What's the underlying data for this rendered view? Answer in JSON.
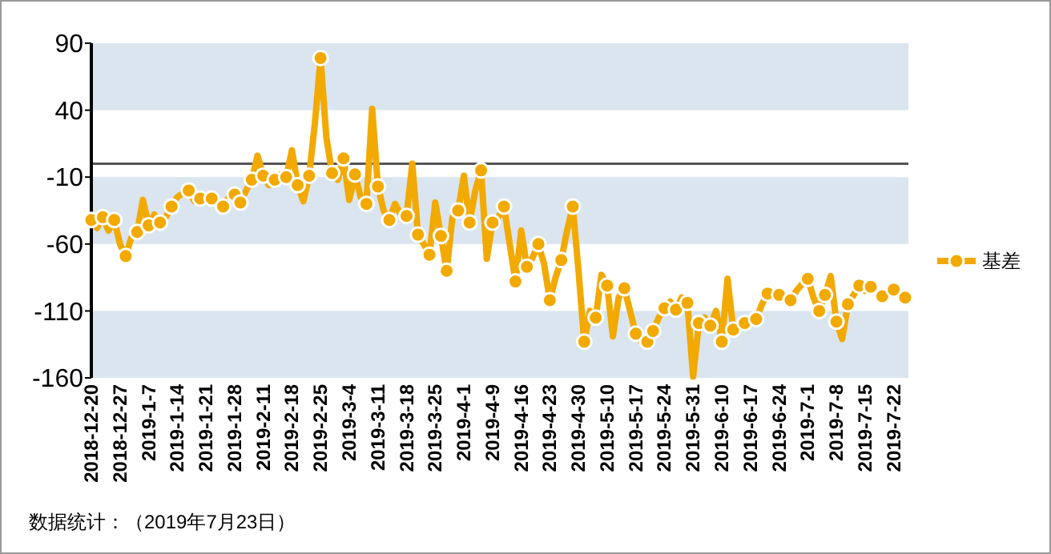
{
  "chart_data": {
    "type": "line",
    "annotations": [
      "数据统计：（2019年7月23日）"
    ],
    "categories": [
      "2018-12-20",
      null,
      null,
      null,
      null,
      "2018-12-27",
      null,
      null,
      null,
      null,
      "2019-1-7",
      null,
      null,
      null,
      null,
      "2019-1-14",
      null,
      null,
      null,
      null,
      "2019-1-21",
      null,
      null,
      null,
      null,
      "2019-1-28",
      null,
      null,
      null,
      null,
      "2019-2-11",
      null,
      null,
      null,
      null,
      "2019-2-18",
      null,
      null,
      null,
      null,
      "2019-2-25",
      null,
      null,
      null,
      null,
      "2019-3-4",
      null,
      null,
      null,
      null,
      "2019-3-11",
      null,
      null,
      null,
      null,
      "2019-3-18",
      null,
      null,
      null,
      null,
      "2019-3-25",
      null,
      null,
      null,
      null,
      "2019-4-1",
      null,
      null,
      null,
      null,
      "2019-4-9",
      null,
      null,
      null,
      null,
      "2019-4-16",
      null,
      null,
      null,
      null,
      "2019-4-23",
      null,
      null,
      null,
      null,
      "2019-4-30",
      null,
      null,
      null,
      null,
      "2019-5-10",
      null,
      null,
      null,
      null,
      "2019-5-17",
      null,
      null,
      null,
      null,
      "2019-5-24",
      null,
      null,
      null,
      null,
      "2019-5-31",
      null,
      null,
      null,
      null,
      "2019-6-10",
      null,
      null,
      null,
      null,
      "2019-6-17",
      null,
      null,
      null,
      null,
      "2019-6-24",
      null,
      null,
      null,
      null,
      "2019-7-1",
      null,
      null,
      null,
      null,
      "2019-7-8",
      null,
      null,
      null,
      null,
      "2019-7-15",
      null,
      null,
      null,
      null,
      "2019-7-22",
      null,
      null
    ],
    "series": [
      {
        "type": "line",
        "name": "基差",
        "color": "#f2a900",
        "marker": "none",
        "values": [
          -42,
          -48,
          -40,
          -50,
          -42,
          -60,
          -69,
          -55,
          -51,
          -27,
          -46,
          -38,
          -44,
          -40,
          -32,
          -25,
          -22,
          -20,
          -28,
          -26,
          -24,
          -26,
          -30,
          -32,
          -25,
          -23,
          -29,
          -20,
          -12,
          6,
          -9,
          -16,
          -12,
          -8,
          -10,
          10,
          -16,
          -28,
          -9,
          30,
          79,
          20,
          -7,
          -12,
          4,
          -27,
          -8,
          -25,
          -30,
          41,
          -17,
          -35,
          -42,
          -30,
          -38,
          -39,
          0,
          -53,
          -60,
          -68,
          -29,
          -54,
          -80,
          -40,
          -35,
          -9,
          -44,
          -20,
          -5,
          -71,
          -44,
          -40,
          -32,
          -60,
          -88,
          -50,
          -77,
          -70,
          -60,
          -75,
          -102,
          -85,
          -72,
          -50,
          -32,
          -80,
          -133,
          -110,
          -115,
          -83,
          -91,
          -129,
          -100,
          -93,
          -110,
          -127,
          -133,
          -133,
          -125,
          -115,
          -108,
          -103,
          -109,
          -100,
          -104,
          -159,
          -119,
          -115,
          -121,
          -110,
          -133,
          -86,
          -124,
          -120,
          -119,
          -118,
          -116,
          -105,
          -97,
          -100,
          -98,
          -100,
          -102,
          -95,
          -90,
          -86,
          -100,
          -110,
          -98,
          -84,
          -118,
          -131,
          -105,
          -98,
          -91,
          -95,
          -92,
          -97,
          -99,
          -95,
          -94,
          -98,
          -100
        ]
      },
      {
        "type": "scatter",
        "color": "#f2a900",
        "marker": "circle",
        "values": [
          -42,
          null,
          -40,
          null,
          -42,
          null,
          -69,
          null,
          -51,
          null,
          -46,
          null,
          -44,
          null,
          -32,
          null,
          null,
          -20,
          null,
          -26,
          null,
          -26,
          null,
          -32,
          null,
          -23,
          -29,
          null,
          -12,
          null,
          -9,
          null,
          -12,
          null,
          -10,
          null,
          -16,
          null,
          -9,
          null,
          79,
          null,
          -7,
          null,
          4,
          null,
          -8,
          null,
          -30,
          null,
          -17,
          null,
          -42,
          null,
          null,
          -39,
          null,
          -53,
          null,
          -68,
          null,
          -54,
          -80,
          null,
          -35,
          null,
          -44,
          null,
          -5,
          null,
          -44,
          null,
          -32,
          null,
          -88,
          null,
          -77,
          null,
          -60,
          null,
          -102,
          null,
          -72,
          null,
          -32,
          null,
          -133,
          null,
          -115,
          null,
          -91,
          null,
          null,
          -93,
          null,
          -127,
          null,
          -133,
          -125,
          null,
          -108,
          null,
          -109,
          null,
          -104,
          null,
          -119,
          null,
          -121,
          null,
          -133,
          null,
          -124,
          null,
          -119,
          null,
          -116,
          null,
          -97,
          null,
          -98,
          null,
          -102,
          null,
          null,
          -86,
          null,
          -110,
          -98,
          null,
          -118,
          null,
          -105,
          null,
          -91,
          null,
          -92,
          null,
          -99,
          null,
          -94,
          null,
          -100
        ]
      }
    ],
    "ylim": [
      -160,
      90
    ],
    "yticks": [
      90,
      40,
      -10,
      -60,
      -110,
      -160
    ],
    "grid": false,
    "legend": "right",
    "ref_lines": [
      {
        "axis": "y",
        "value": 0,
        "color": "#555555"
      }
    ],
    "bands": [
      {
        "axis": "y",
        "from": 40,
        "to": 90,
        "color": "#dae5f0"
      },
      {
        "axis": "y",
        "from": -60,
        "to": -10,
        "color": "#dae5f0"
      },
      {
        "axis": "y",
        "from": -160,
        "to": -110,
        "color": "#dae5f0"
      }
    ]
  }
}
